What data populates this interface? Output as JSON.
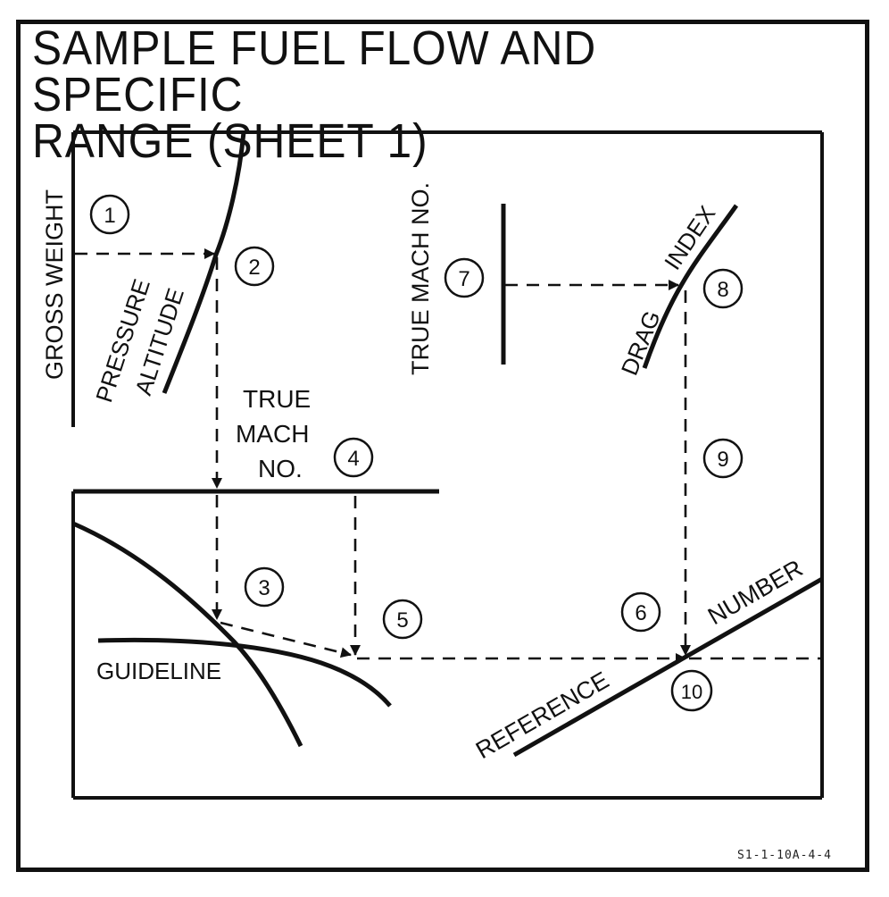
{
  "title": {
    "line1": "SAMPLE FUEL FLOW AND SPECIFIC",
    "line2": "RANGE (SHEET 1)"
  },
  "labels": {
    "gross_weight": "GROSS WEIGHT",
    "pressure": "PRESSURE",
    "altitude": "ALTITUDE",
    "true_mach_upper": "TRUE MACH NO.",
    "true_mach_lower_1": "TRUE",
    "true_mach_lower_2": "MACH",
    "true_mach_lower_3": "NO.",
    "guideline": "GUIDELINE",
    "drag": "DRAG",
    "index": "INDEX",
    "reference": "REFERENCE",
    "number": "NUMBER"
  },
  "steps": [
    "1",
    "2",
    "3",
    "4",
    "5",
    "6",
    "7",
    "8",
    "9",
    "10"
  ],
  "figure_code": "S1-1-10A-4-4",
  "colors": {
    "ink": "#111111",
    "paper": "#ffffff"
  }
}
